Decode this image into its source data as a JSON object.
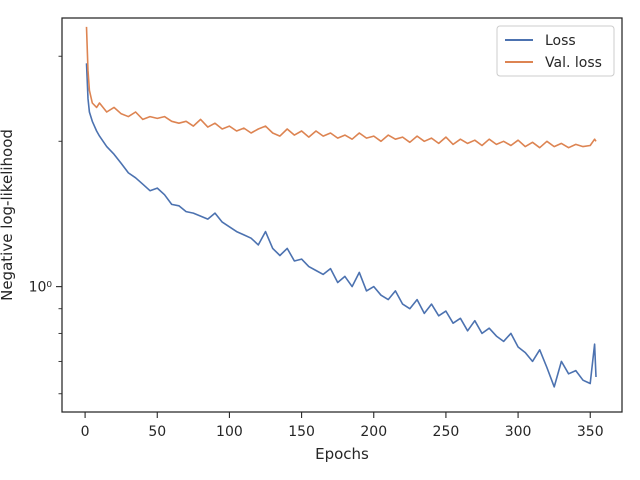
{
  "chart_data": {
    "type": "line",
    "xlabel": "Epochs",
    "ylabel": "Negative log-likelihood",
    "yscale": "log",
    "xlim": [
      -16,
      372
    ],
    "ylim": [
      0.55,
      3.6
    ],
    "xticks": [
      0,
      50,
      100,
      150,
      200,
      250,
      300,
      350
    ],
    "yticks_major": [
      {
        "value": 1.0,
        "label": "10⁰"
      }
    ],
    "yticks_minor": [
      0.6,
      0.7,
      0.8,
      0.9,
      2,
      3
    ],
    "grid": false,
    "legend": "upper right",
    "series": [
      {
        "name": "Loss",
        "color": "#4c72b0",
        "x": [
          1,
          2,
          3,
          5,
          8,
          10,
          15,
          20,
          25,
          30,
          35,
          40,
          45,
          50,
          55,
          60,
          65,
          70,
          75,
          80,
          85,
          90,
          95,
          100,
          105,
          110,
          115,
          120,
          125,
          130,
          135,
          140,
          145,
          150,
          155,
          160,
          165,
          170,
          175,
          180,
          185,
          190,
          195,
          200,
          205,
          210,
          215,
          220,
          225,
          230,
          235,
          240,
          245,
          250,
          255,
          260,
          265,
          270,
          275,
          280,
          285,
          290,
          295,
          300,
          305,
          310,
          315,
          320,
          325,
          330,
          335,
          340,
          345,
          350,
          353,
          354
        ],
        "y": [
          2.9,
          2.45,
          2.3,
          2.2,
          2.1,
          2.05,
          1.95,
          1.88,
          1.8,
          1.72,
          1.68,
          1.63,
          1.58,
          1.6,
          1.55,
          1.48,
          1.47,
          1.43,
          1.42,
          1.4,
          1.38,
          1.42,
          1.36,
          1.33,
          1.3,
          1.28,
          1.26,
          1.22,
          1.3,
          1.2,
          1.16,
          1.2,
          1.13,
          1.14,
          1.1,
          1.08,
          1.06,
          1.09,
          1.02,
          1.05,
          1.0,
          1.07,
          0.98,
          1.0,
          0.96,
          0.94,
          0.98,
          0.92,
          0.9,
          0.94,
          0.88,
          0.92,
          0.87,
          0.89,
          0.84,
          0.86,
          0.81,
          0.85,
          0.8,
          0.82,
          0.79,
          0.77,
          0.8,
          0.75,
          0.73,
          0.7,
          0.74,
          0.68,
          0.62,
          0.7,
          0.66,
          0.67,
          0.64,
          0.63,
          0.76,
          0.65
        ]
      },
      {
        "name": "Val. loss",
        "color": "#dd8452",
        "x": [
          1,
          2,
          3,
          5,
          8,
          10,
          15,
          20,
          25,
          30,
          35,
          40,
          45,
          50,
          55,
          60,
          65,
          70,
          75,
          80,
          85,
          90,
          95,
          100,
          105,
          110,
          115,
          120,
          125,
          130,
          135,
          140,
          145,
          150,
          155,
          160,
          165,
          170,
          175,
          180,
          185,
          190,
          195,
          200,
          205,
          210,
          215,
          220,
          225,
          230,
          235,
          240,
          245,
          250,
          255,
          260,
          265,
          270,
          275,
          280,
          285,
          290,
          295,
          300,
          305,
          310,
          315,
          320,
          325,
          330,
          335,
          340,
          345,
          350,
          353,
          354
        ],
        "y": [
          3.45,
          2.8,
          2.55,
          2.4,
          2.35,
          2.4,
          2.3,
          2.35,
          2.28,
          2.25,
          2.3,
          2.22,
          2.25,
          2.23,
          2.25,
          2.2,
          2.18,
          2.2,
          2.15,
          2.22,
          2.14,
          2.18,
          2.12,
          2.15,
          2.1,
          2.13,
          2.08,
          2.12,
          2.15,
          2.08,
          2.05,
          2.12,
          2.06,
          2.1,
          2.04,
          2.1,
          2.05,
          2.08,
          2.03,
          2.06,
          2.02,
          2.08,
          2.03,
          2.05,
          2.0,
          2.06,
          2.02,
          2.04,
          1.99,
          2.05,
          2.0,
          2.03,
          1.98,
          2.04,
          1.97,
          2.02,
          1.98,
          2.01,
          1.96,
          2.02,
          1.97,
          2.0,
          1.96,
          2.01,
          1.95,
          1.99,
          1.94,
          2.0,
          1.95,
          1.98,
          1.94,
          1.97,
          1.95,
          1.96,
          2.02,
          2.0
        ]
      }
    ]
  }
}
